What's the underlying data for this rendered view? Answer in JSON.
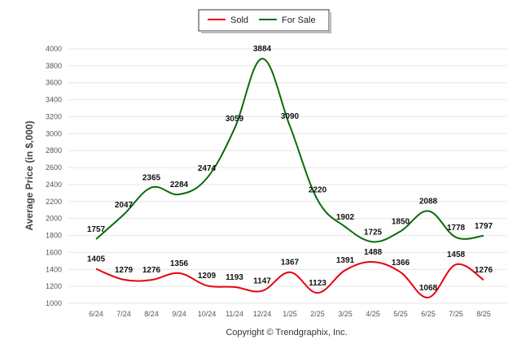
{
  "chart_data": {
    "type": "line",
    "ylabel": "Average Price (in $,000)",
    "xlabel": "",
    "ylim": [
      1000,
      4000
    ],
    "yticks": [
      1000,
      1200,
      1400,
      1600,
      1800,
      2000,
      2200,
      2400,
      2600,
      2800,
      3000,
      3200,
      3400,
      3600,
      3800,
      4000
    ],
    "grid": true,
    "legend_position": "top-center",
    "categories": [
      "6/24",
      "7/24",
      "8/24",
      "9/24",
      "10/24",
      "11/24",
      "12/24",
      "1/25",
      "2/25",
      "3/25",
      "4/25",
      "5/25",
      "6/25",
      "7/25",
      "8/25"
    ],
    "series": [
      {
        "name": "Sold",
        "color": "#e8000d",
        "values": [
          1405,
          1279,
          1276,
          1356,
          1209,
          1193,
          1147,
          1367,
          1123,
          1391,
          1488,
          1366,
          1068,
          1458,
          1276
        ]
      },
      {
        "name": "For Sale",
        "color": "#0a6b0a",
        "values": [
          1757,
          2047,
          2365,
          2284,
          2474,
          3059,
          3884,
          3090,
          2220,
          1902,
          1725,
          1850,
          2088,
          1778,
          1797
        ]
      }
    ],
    "footer": "Copyright © Trendgraphix, Inc."
  }
}
